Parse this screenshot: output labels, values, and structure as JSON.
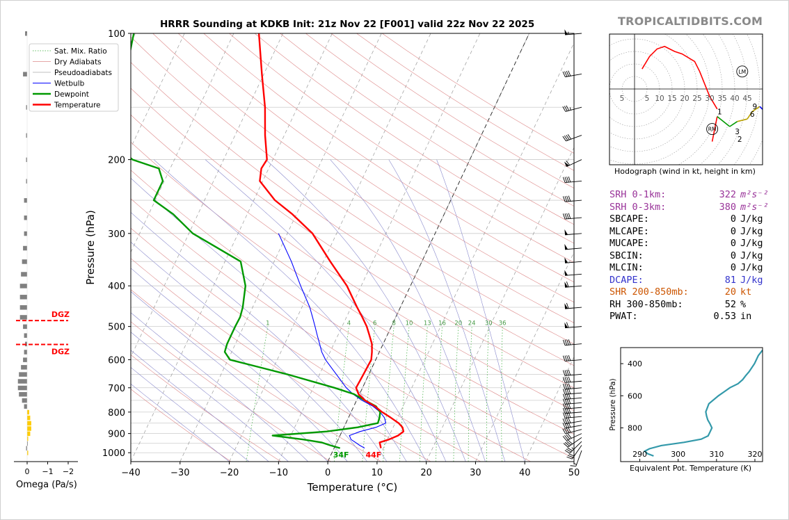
{
  "brand": "TROPICALTIDBITS.COM",
  "colors": {
    "temperature": "#ff0000",
    "dewpoint": "#009900",
    "wetbulb": "#0000ff",
    "omega_down": "#808080",
    "omega_up": "#ffcc00",
    "dgz": "#ff0000",
    "srh": "#993399",
    "dcape": "#3333cc",
    "shear": "#cc5500",
    "theta_e": "#3399aa"
  },
  "chart_data": [
    {
      "type": "line",
      "chart": "skewt",
      "title": "HRRR Sounding at KDKB Init: 21z Nov 22 [F001] valid 22z Nov 22 2025",
      "xlabel": "Temperature (°C)",
      "ylabel": "Pressure (hPa)",
      "xlim": [
        -40,
        50
      ],
      "ylim": [
        1050,
        100
      ],
      "y_scale": "log",
      "x_ticks": [
        "−40",
        "−30",
        "−20",
        "−10",
        "0",
        "10",
        "20",
        "30",
        "40",
        "50"
      ],
      "x_tick_values": [
        -40,
        -30,
        -20,
        -10,
        0,
        10,
        20,
        30,
        40,
        50
      ],
      "y_ticks": [
        "100",
        "200",
        "300",
        "400",
        "500",
        "600",
        "700",
        "800",
        "900",
        "1000"
      ],
      "y_tick_values": [
        100,
        200,
        300,
        400,
        500,
        600,
        700,
        800,
        900,
        1000
      ],
      "legend": {
        "placement": "top-left",
        "entries": [
          "Sat. Mix. Ratio",
          "Dry Adiabats",
          "Pseudoadiabats",
          "Wetbulb",
          "Dewpoint",
          "Temperature"
        ]
      },
      "mixing_ratio_labels": [
        "1",
        "4",
        "6",
        "8",
        "10",
        "13",
        "16",
        "20",
        "24",
        "30",
        "36"
      ],
      "mixing_ratio_values": [
        1,
        4,
        6,
        8,
        10,
        13,
        16,
        20,
        24,
        30,
        36
      ],
      "surface_temp_label": "44F",
      "surface_dew_label": "34F",
      "series": [
        {
          "name": "Temperature",
          "pressure": [
            975,
            960,
            945,
            930,
            910,
            890,
            870,
            850,
            825,
            800,
            775,
            750,
            725,
            700,
            650,
            600,
            575,
            550,
            525,
            500,
            475,
            450,
            400,
            350,
            300,
            270,
            250,
            225,
            210,
            200,
            175,
            150,
            125,
            100
          ],
          "temperature": [
            9.5,
            9.1,
            8.7,
            10.3,
            11.8,
            12.5,
            11.9,
            10.7,
            8.6,
            6.3,
            4.3,
            1.7,
            -0.2,
            -1.3,
            -1.1,
            -0.9,
            -1.5,
            -2.3,
            -3.6,
            -5.0,
            -6.8,
            -8.8,
            -12.9,
            -18.6,
            -24.9,
            -30.8,
            -35.7,
            -40.6,
            -41.5,
            -41.2,
            -43.9,
            -46.6,
            -50.4,
            -54.9
          ]
        },
        {
          "name": "Dewpoint",
          "pressure": [
            975,
            960,
            945,
            930,
            910,
            890,
            870,
            850,
            825,
            800,
            775,
            750,
            725,
            700,
            650,
            600,
            575,
            550,
            525,
            500,
            475,
            450,
            400,
            350,
            300,
            270,
            250,
            225,
            210,
            200,
            175,
            150,
            125,
            100
          ],
          "dewpoint": [
            1.2,
            -1.1,
            -3.1,
            -7.1,
            -13.7,
            -3.1,
            2.8,
            6.5,
            6.3,
            5.9,
            4.5,
            1.7,
            -1.1,
            -5.7,
            -16.6,
            -29.6,
            -31.4,
            -31.7,
            -31.7,
            -31.7,
            -31.6,
            -32.0,
            -33.5,
            -36.8,
            -49.2,
            -55.0,
            -60.3,
            -60.3,
            -62.3,
            -68.5,
            -76.8,
            -75.6,
            -78.1,
            -80.3
          ]
        },
        {
          "name": "Wetbulb",
          "pressure": [
            975,
            960,
            945,
            930,
            910,
            890,
            870,
            850,
            825,
            800,
            775,
            750,
            725,
            700,
            650,
            600,
            575,
            550,
            525,
            500,
            475,
            450,
            400,
            350,
            300
          ],
          "wetbulb": [
            6.2,
            4.9,
            3.8,
            2.6,
            1.9,
            3.7,
            6.5,
            8.1,
            7.3,
            5.9,
            3.9,
            1.1,
            -1.3,
            -3.3,
            -6.6,
            -10.2,
            -11.7,
            -12.9,
            -14.2,
            -15.5,
            -16.9,
            -18.4,
            -22.3,
            -26.5,
            -31.8
          ]
        }
      ],
      "dgz": [
        {
          "label": "DGZ",
          "pressure": 484
        },
        {
          "label": "DGZ",
          "pressure": 552
        }
      ],
      "wind_barbs": {
        "pressure": [
          988,
          960,
          940,
          920,
          900,
          880,
          860,
          840,
          820,
          800,
          780,
          760,
          740,
          720,
          700,
          675,
          650,
          600,
          550,
          500,
          450,
          400,
          375,
          350,
          325,
          300,
          275,
          250,
          225,
          200,
          175,
          150,
          125,
          100
        ],
        "speed_kt": [
          15,
          30,
          35,
          40,
          40,
          40,
          40,
          40,
          40,
          40,
          40,
          40,
          40,
          40,
          40,
          40,
          40,
          40,
          40,
          60,
          60,
          60,
          50,
          50,
          50,
          50,
          40,
          40,
          40,
          60,
          40,
          35,
          40,
          55
        ],
        "direction_deg": [
          200,
          215,
          225,
          235,
          245,
          255,
          260,
          260,
          265,
          265,
          265,
          265,
          265,
          265,
          265,
          265,
          265,
          265,
          265,
          265,
          265,
          265,
          265,
          265,
          265,
          265,
          265,
          265,
          265,
          245,
          250,
          255,
          260,
          265
        ]
      }
    },
    {
      "type": "bar",
      "chart": "omega",
      "xlabel": "Omega (Pa/s)",
      "x_ticks": [
        "0",
        "−1",
        "−2"
      ],
      "x_tick_values": [
        0,
        -1,
        -2
      ],
      "xlim": [
        0.5,
        -2.4
      ],
      "levels_hpa": [
        100,
        125,
        150,
        175,
        200,
        225,
        250,
        275,
        300,
        325,
        350,
        375,
        400,
        425,
        450,
        475,
        500,
        525,
        550,
        575,
        600,
        625,
        650,
        675,
        700,
        725,
        750,
        775,
        800,
        825,
        850,
        875,
        900,
        925,
        950,
        975,
        1000
      ],
      "omega_pa_s": [
        0.1,
        0.2,
        0.05,
        0.05,
        0.05,
        0.05,
        0.15,
        0.15,
        0.15,
        0.2,
        0.25,
        0.3,
        0.35,
        0.35,
        0.35,
        0.35,
        0.2,
        0.15,
        0.1,
        0.15,
        0.2,
        0.3,
        0.4,
        0.45,
        0.45,
        0.4,
        0.25,
        0.15,
        -0.1,
        -0.15,
        -0.2,
        -0.2,
        -0.15,
        -0.05,
        0.0,
        0.05,
        -0.05
      ]
    },
    {
      "type": "line",
      "chart": "hodograph",
      "caption": "Hodograph (wind in kt, height in km)",
      "ring_labels": [
        "5",
        "5",
        "10",
        "15",
        "20",
        "25",
        "30",
        "35",
        "40",
        "45"
      ],
      "ring_label_values": [
        -5,
        5,
        10,
        15,
        20,
        25,
        30,
        35,
        40,
        45
      ],
      "height_labels": [
        "1",
        "2",
        "3",
        "6",
        "9"
      ],
      "markers": [
        "LM",
        "RM"
      ],
      "markers_uv": [
        [
          43,
          7
        ],
        [
          31,
          -16
        ]
      ],
      "trace": [
        {
          "km": 0.0,
          "u": 31,
          "v": -21
        },
        {
          "km": 1.0,
          "u": 33,
          "v": -11
        },
        {
          "km": 2.0,
          "u": 38,
          "v": -15
        },
        {
          "km": 3.0,
          "u": 41,
          "v": -13
        },
        {
          "km": 4.0,
          "u": 45,
          "v": -12
        },
        {
          "km": 5.0,
          "u": 47,
          "v": -9
        },
        {
          "km": 6.0,
          "u": 50,
          "v": -7
        },
        {
          "km": 9.0,
          "u": 52,
          "v": -9
        },
        {
          "km": 10.0,
          "u": 54,
          "v": -10
        }
      ],
      "segment_colors": [
        "#ff0000",
        "#009900",
        "#b8a000",
        "#0000ff",
        "#993399"
      ],
      "upper_trace_uv": [
        [
          33,
          -8
        ],
        [
          30,
          -3
        ],
        [
          28,
          2
        ],
        [
          26,
          7
        ],
        [
          24,
          11
        ],
        [
          19,
          14
        ],
        [
          16,
          15
        ],
        [
          12,
          17
        ],
        [
          9,
          16
        ],
        [
          6,
          13
        ],
        [
          3,
          8
        ]
      ]
    },
    {
      "type": "line",
      "chart": "theta_e",
      "xlabel": "Equivalent Pot. Temperature (K)",
      "ylabel": "Pressure (hPa)",
      "x_ticks": [
        "290",
        "300",
        "310",
        "320"
      ],
      "x_tick_values": [
        290,
        300,
        310,
        320
      ],
      "y_ticks": [
        "400",
        "600",
        "800"
      ],
      "y_tick_values": [
        400,
        600,
        800
      ],
      "xlim": [
        285,
        322
      ],
      "ylim": [
        1010,
        300
      ],
      "pressure": [
        975,
        960,
        945,
        930,
        910,
        890,
        870,
        850,
        825,
        800,
        775,
        750,
        725,
        700,
        650,
        600,
        575,
        550,
        525,
        500,
        475,
        450,
        400,
        350,
        300
      ],
      "theta_e": [
        293.6,
        292.0,
        291.3,
        292.5,
        295.6,
        301.5,
        306.0,
        307.8,
        308.3,
        308.8,
        308.3,
        307.7,
        307.4,
        307.2,
        308.0,
        310.5,
        312.0,
        313.5,
        315.6,
        316.8,
        317.6,
        318.5,
        319.9,
        320.9,
        322.5
      ]
    }
  ],
  "params": [
    {
      "label": "SRH 0-1km:",
      "value": "322",
      "unit": "m²s⁻²",
      "color": "#993399"
    },
    {
      "label": "SRH 0-3km:",
      "value": "380",
      "unit": "m²s⁻²",
      "color": "#993399"
    },
    {
      "label": "SBCAPE:",
      "value": "0",
      "unit": "J/kg",
      "color": "#000000"
    },
    {
      "label": "MLCAPE:",
      "value": "0",
      "unit": "J/kg",
      "color": "#000000"
    },
    {
      "label": "MUCAPE:",
      "value": "0",
      "unit": "J/kg",
      "color": "#000000"
    },
    {
      "label": "SBCIN:",
      "value": "0",
      "unit": "J/kg",
      "color": "#000000"
    },
    {
      "label": "MLCIN:",
      "value": "0",
      "unit": "J/kg",
      "color": "#000000"
    },
    {
      "label": "DCAPE:",
      "value": "81",
      "unit": "J/kg",
      "color": "#3333cc"
    },
    {
      "label": "SHR 200-850mb:",
      "value": "20",
      "unit": "kt",
      "color": "#cc5500"
    },
    {
      "label": "RH 300-850mb:",
      "value": "52",
      "unit": "%",
      "color": "#000000"
    },
    {
      "label": "PWAT:",
      "value": "0.53",
      "unit": "in",
      "color": "#000000"
    }
  ]
}
